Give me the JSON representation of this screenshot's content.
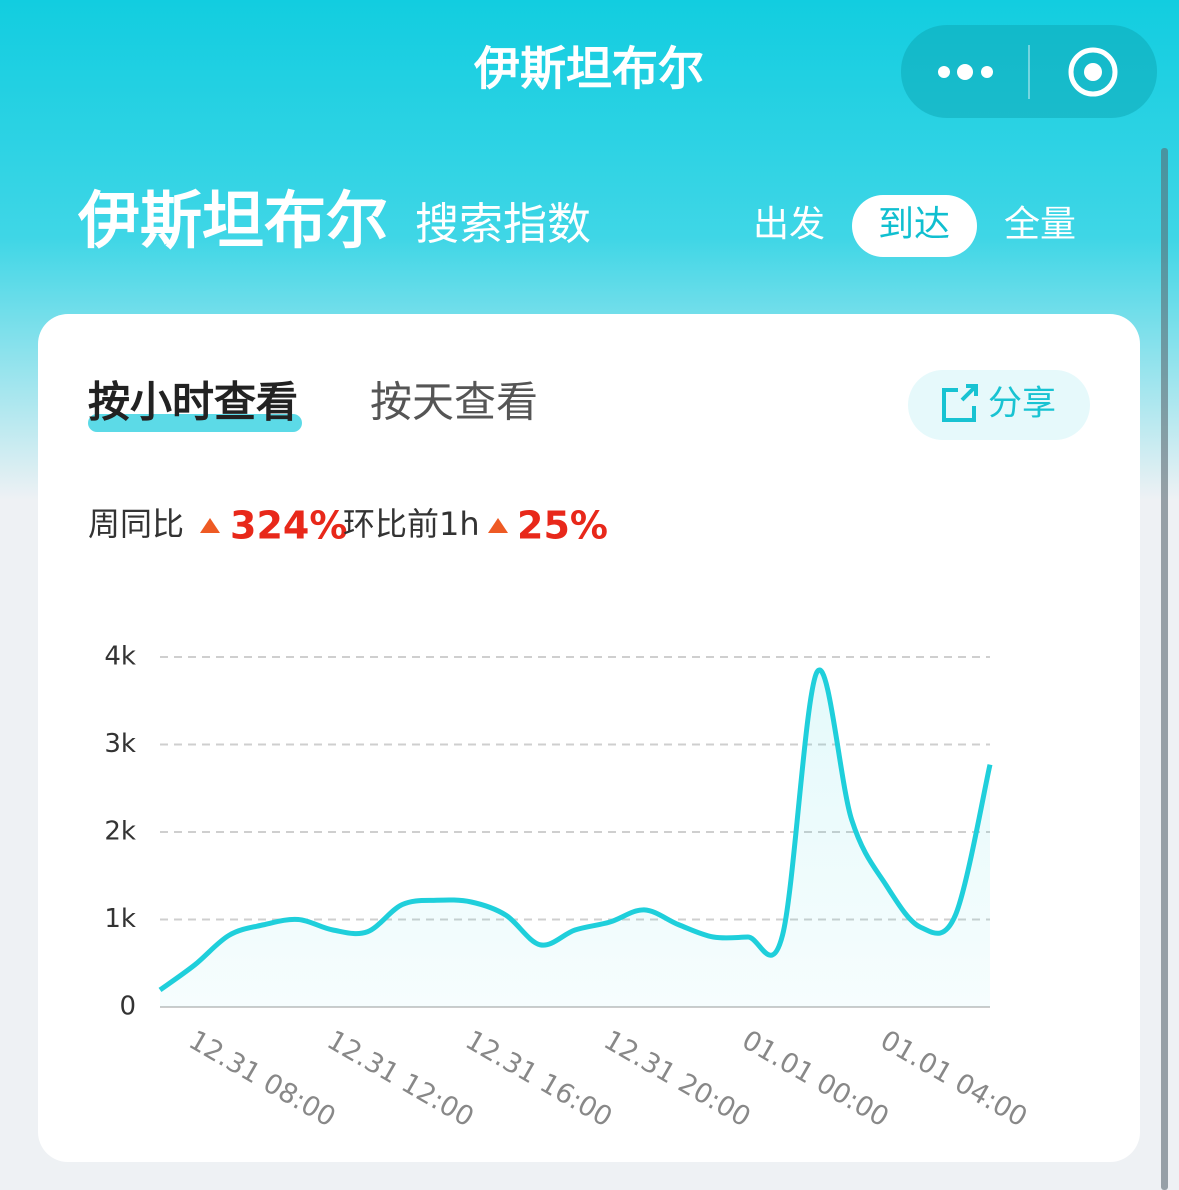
{
  "header": {
    "title": "伊斯坦布尔"
  },
  "heading": {
    "city": "伊斯坦布尔",
    "subtitle": "搜索指数"
  },
  "direction_tabs": [
    "出发",
    "到达",
    "全量"
  ],
  "view_tabs": [
    "按小时查看",
    "按天查看"
  ],
  "share": "分享",
  "stats": [
    {
      "label": "周同比",
      "value": "324%"
    },
    {
      "label": "环比前1h",
      "value": "25%"
    }
  ],
  "chart_data": {
    "type": "line",
    "categories": [
      null,
      "12.31 08:00",
      null,
      null,
      null,
      "12.31 12:00",
      null,
      null,
      null,
      "12.31 16:00",
      null,
      null,
      null,
      "12.31 20:00",
      null,
      null,
      null,
      "01.01 00:00",
      null,
      null,
      null,
      "01.01 04:00",
      null,
      null,
      null
    ],
    "values": [
      195,
      480,
      820,
      940,
      1000,
      880,
      860,
      1170,
      1220,
      1200,
      1050,
      710,
      880,
      970,
      1110,
      940,
      800,
      800,
      820,
      3830,
      2140,
      1390,
      910,
      1050,
      2770
    ],
    "color": "#1fcfdb",
    "ylim": [
      0,
      4000
    ],
    "yticks": [
      0,
      {
        "value": 1000,
        "label": "1k"
      },
      {
        "value": 2000,
        "label": "2k"
      },
      {
        "value": 3000,
        "label": "3k"
      },
      {
        "value": 4000,
        "label": "4k"
      }
    ],
    "grid": true
  }
}
